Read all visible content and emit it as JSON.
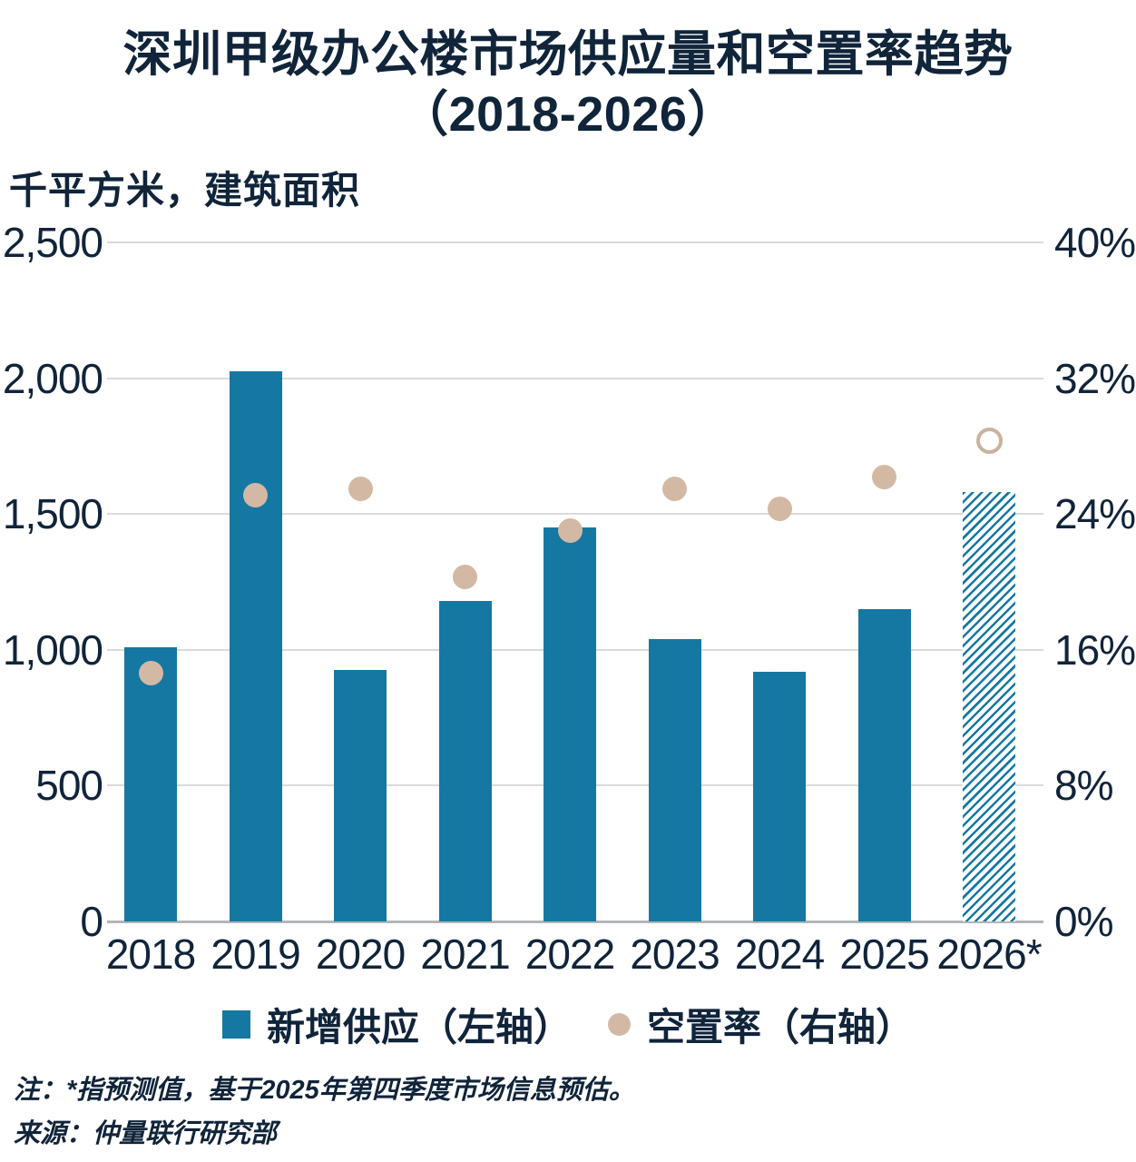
{
  "title": {
    "line1": "深圳甲级办公楼市场供应量和空置率趋势",
    "line2": "（2018-2026）"
  },
  "unit_label": "千平方米，建筑面积",
  "legend": [
    {
      "label": "新增供应（左轴）",
      "marker": "square"
    },
    {
      "label": "空置率（右轴）",
      "marker": "circle"
    }
  ],
  "notes": {
    "note": "注：*指预测值，基于2025年第四季度市场信息预估。",
    "source": "来源：仲量联行研究部"
  },
  "colors": {
    "bar": "#1578a2",
    "dot": "#d3b9a4",
    "dot_open_stroke": "#cbb29c",
    "text": "#10243a",
    "grid": "#dadada",
    "baseline": "#b3b6b8"
  },
  "chart_data": {
    "type": "bar",
    "subtype": "combo-bar-scatter",
    "title": "深圳甲级办公楼市场供应量和空置率趋势（2018-2026）",
    "categories": [
      "2018",
      "2019",
      "2020",
      "2021",
      "2022",
      "2023",
      "2024",
      "2025",
      "2026*"
    ],
    "series": [
      {
        "name": "新增供应（左轴）",
        "type": "bar",
        "axis": "left",
        "unit": "千平方米",
        "values": [
          1010,
          2025,
          925,
          1180,
          1450,
          1040,
          920,
          1150,
          1580
        ],
        "last_point_is_forecast_hatched": true
      },
      {
        "name": "空置率（右轴）",
        "type": "scatter",
        "axis": "right",
        "unit": "%",
        "values": [
          14.6,
          25.1,
          25.5,
          20.3,
          23.0,
          25.5,
          24.3,
          26.2,
          28.3
        ],
        "last_point_is_forecast_open_circle": true
      }
    ],
    "left_axis": {
      "label": "千平方米，建筑面积",
      "min": 0,
      "max": 2500,
      "ticks": [
        "0",
        "500",
        "1,000",
        "1,500",
        "2,000",
        "2,500"
      ]
    },
    "right_axis": {
      "min": 0,
      "max": 40,
      "ticks": [
        "0%",
        "8%",
        "16%",
        "24%",
        "32%",
        "40%"
      ]
    },
    "grid": true,
    "legend_position": "bottom",
    "footnote": "注：*指预测值，基于2025年第四季度市场信息预估。",
    "source": "来源：仲量联行研究部"
  }
}
